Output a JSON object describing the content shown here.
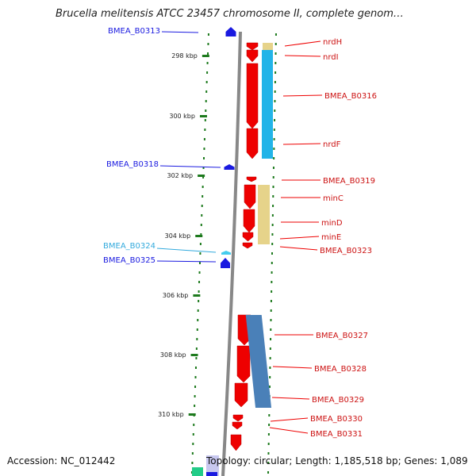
{
  "title": "Brucella melitensis ATCC 23457 chromosome II, complete genom…",
  "footer": {
    "accession": "Accession: NC_012442",
    "summary": "Topology: circular; Length: 1,185,518 bp; Genes: 1,089"
  },
  "colors": {
    "forward_gene": "#ee0000",
    "reverse_gene": "#1a1ae0",
    "rna_gene": "#44ccee",
    "backbone": "#888888",
    "tick": "#1d7a1d",
    "cog_blue": "#22b4e8",
    "cog_tan": "#e6d38a",
    "cog_steel": "#4a80b8",
    "cog_green": "#22cc88"
  },
  "scale_labels": [
    "298 kbp",
    "300 kbp",
    "302 kbp",
    "304 kbp",
    "306 kbp",
    "308 kbp",
    "310 kbp"
  ],
  "left_genes": [
    {
      "label": "BMEA_B0313",
      "color": "#1a1ae0"
    },
    {
      "label": "BMEA_B0318",
      "color": "#1a1ae0"
    },
    {
      "label": "BMEA_B0324",
      "color": "#33aadd"
    },
    {
      "label": "BMEA_B0325",
      "color": "#1a1ae0"
    }
  ],
  "right_genes": [
    {
      "label": "nrdH"
    },
    {
      "label": "nrdI"
    },
    {
      "label": "BMEA_B0316"
    },
    {
      "label": "nrdF"
    },
    {
      "label": "BMEA_B0319"
    },
    {
      "label": "minC"
    },
    {
      "label": "minD"
    },
    {
      "label": "minE"
    },
    {
      "label": "BMEA_B0323"
    },
    {
      "label": "BMEA_B0327"
    },
    {
      "label": "BMEA_B0328"
    },
    {
      "label": "BMEA_B0329"
    },
    {
      "label": "BMEA_B0330"
    },
    {
      "label": "BMEA_B0331"
    }
  ]
}
